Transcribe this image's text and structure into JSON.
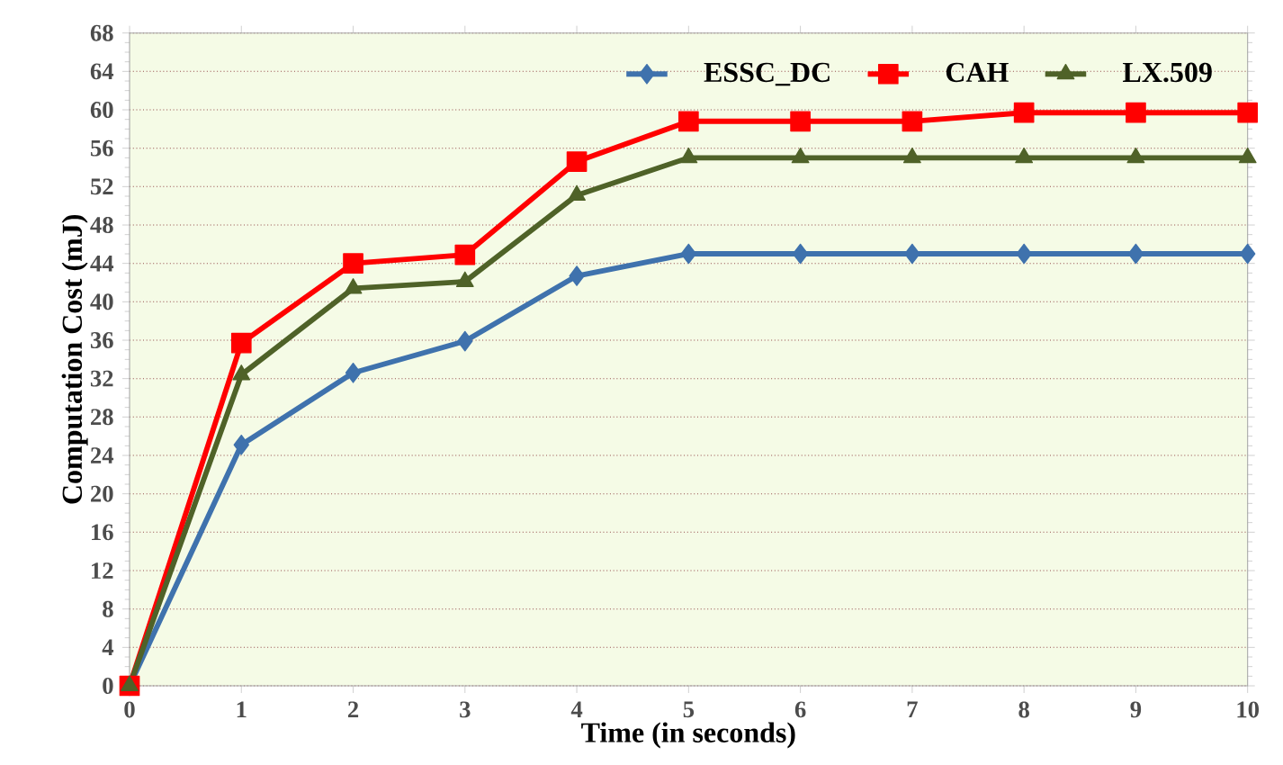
{
  "chart_data": {
    "type": "line",
    "xlabel": "Time (in seconds)",
    "ylabel": "Computation Cost (mJ)",
    "x": [
      0,
      1,
      2,
      3,
      4,
      5,
      6,
      7,
      8,
      9,
      10
    ],
    "series": [
      {
        "name": "ESSC_DC",
        "color": "#3f72ad",
        "marker": "diamond",
        "values": [
          0,
          25.1,
          32.6,
          35.9,
          42.7,
          45,
          45,
          45,
          45,
          45,
          45
        ]
      },
      {
        "name": "CAH",
        "color": "#ff0000",
        "marker": "square",
        "values": [
          0,
          35.7,
          44,
          44.9,
          54.6,
          58.8,
          58.8,
          58.8,
          59.7,
          59.7,
          59.7
        ]
      },
      {
        "name": "LX.509",
        "color": "#4f6228",
        "marker": "triangle",
        "values": [
          0,
          32.4,
          41.4,
          42.1,
          51.1,
          55,
          55,
          55,
          55,
          55,
          55
        ]
      }
    ],
    "xlim": [
      0,
      10
    ],
    "xticks": [
      0,
      1,
      2,
      3,
      4,
      5,
      6,
      7,
      8,
      9,
      10
    ],
    "ylim": [
      0,
      68
    ],
    "yticks": [
      0,
      4,
      8,
      12,
      16,
      20,
      24,
      28,
      32,
      36,
      40,
      44,
      48,
      52,
      56,
      60,
      64,
      68
    ],
    "grid": "y",
    "legend": "top right"
  }
}
